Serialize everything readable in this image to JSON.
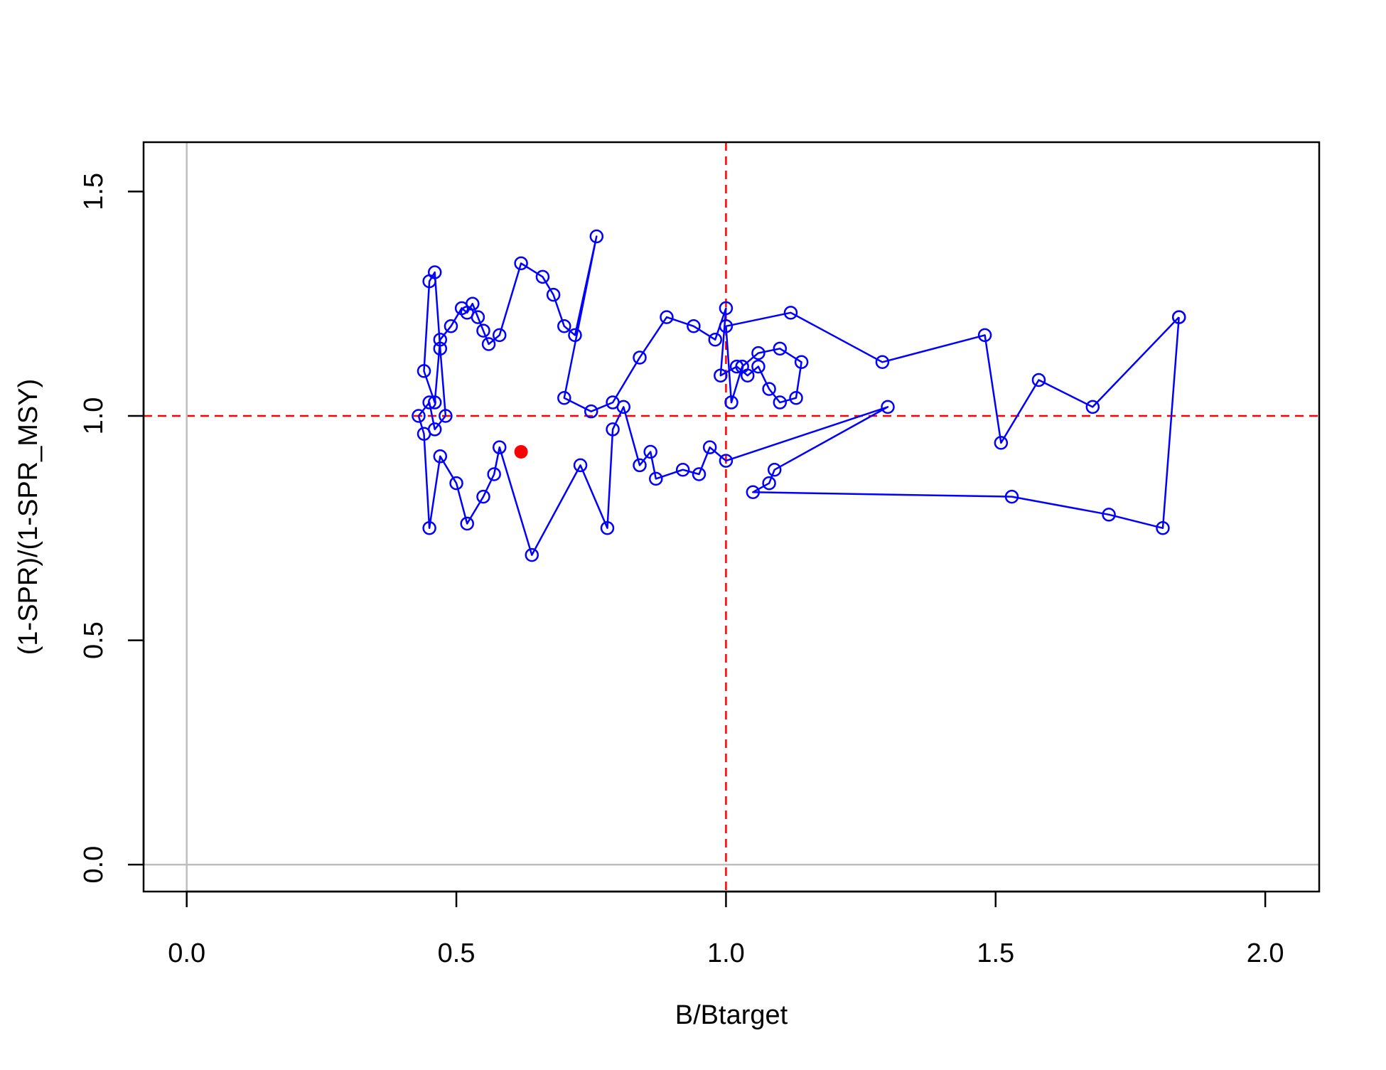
{
  "chart_data": {
    "type": "line",
    "title": "",
    "xlabel": "B/Btarget",
    "ylabel": "(1-SPR)/(1-SPR_MSY)",
    "xlim": [
      -0.08,
      2.1
    ],
    "ylim": [
      -0.06,
      1.61
    ],
    "xticks": [
      0.0,
      0.5,
      1.0,
      1.5,
      2.0
    ],
    "xtick_labels": [
      "0.0",
      "0.5",
      "1.0",
      "1.5",
      "2.0"
    ],
    "yticks": [
      0.0,
      0.5,
      1.0,
      1.5
    ],
    "ytick_labels": [
      "0.0",
      "0.5",
      "1.0",
      "1.5"
    ],
    "grid": false,
    "reference_lines": [
      {
        "axis": "x",
        "value": 1.0,
        "style": "dashed",
        "color": "#ff0000"
      },
      {
        "axis": "y",
        "value": 1.0,
        "style": "dashed",
        "color": "#ff0000"
      },
      {
        "axis": "x",
        "value": 0.0,
        "style": "solid",
        "color": "#bebebe"
      },
      {
        "axis": "y",
        "value": 0.0,
        "style": "solid",
        "color": "#bebebe"
      }
    ],
    "series": [
      {
        "color": "#0000ff",
        "marker": "open-circle",
        "points": [
          [
            1.84,
            1.22
          ],
          [
            1.81,
            0.75
          ],
          [
            1.71,
            0.78
          ],
          [
            1.53,
            0.82
          ],
          [
            1.05,
            0.83
          ],
          [
            1.08,
            0.85
          ],
          [
            1.09,
            0.88
          ],
          [
            1.3,
            1.02
          ],
          [
            1.0,
            0.9
          ],
          [
            0.97,
            0.93
          ],
          [
            0.95,
            0.87
          ],
          [
            0.92,
            0.88
          ],
          [
            0.87,
            0.86
          ],
          [
            0.86,
            0.92
          ],
          [
            0.84,
            0.89
          ],
          [
            0.81,
            1.02
          ],
          [
            0.79,
            0.97
          ],
          [
            0.78,
            0.75
          ],
          [
            0.73,
            0.89
          ],
          [
            0.64,
            0.69
          ],
          [
            0.58,
            0.93
          ],
          [
            0.57,
            0.87
          ],
          [
            0.55,
            0.82
          ],
          [
            0.52,
            0.76
          ],
          [
            0.5,
            0.85
          ],
          [
            0.47,
            0.91
          ],
          [
            0.45,
            0.75
          ],
          [
            0.44,
            0.96
          ],
          [
            0.43,
            1.0
          ],
          [
            0.45,
            1.03
          ],
          [
            0.46,
            0.97
          ],
          [
            0.48,
            1.0
          ],
          [
            0.47,
            1.15
          ],
          [
            0.46,
            1.32
          ],
          [
            0.45,
            1.3
          ],
          [
            0.44,
            1.1
          ],
          [
            0.46,
            1.03
          ],
          [
            0.47,
            1.17
          ],
          [
            0.49,
            1.2
          ],
          [
            0.51,
            1.24
          ],
          [
            0.52,
            1.23
          ],
          [
            0.53,
            1.25
          ],
          [
            0.54,
            1.22
          ],
          [
            0.55,
            1.19
          ],
          [
            0.56,
            1.16
          ],
          [
            0.58,
            1.18
          ],
          [
            0.62,
            1.34
          ],
          [
            0.66,
            1.31
          ],
          [
            0.68,
            1.27
          ],
          [
            0.7,
            1.2
          ],
          [
            0.72,
            1.18
          ],
          [
            0.76,
            1.4
          ],
          [
            0.7,
            1.04
          ],
          [
            0.75,
            1.01
          ],
          [
            0.79,
            1.03
          ],
          [
            0.84,
            1.13
          ],
          [
            0.89,
            1.22
          ],
          [
            0.94,
            1.2
          ],
          [
            0.98,
            1.17
          ],
          [
            1.0,
            1.24
          ],
          [
            0.99,
            1.09
          ],
          [
            1.02,
            1.11
          ],
          [
            1.04,
            1.09
          ],
          [
            1.06,
            1.11
          ],
          [
            1.08,
            1.06
          ],
          [
            1.1,
            1.03
          ],
          [
            1.13,
            1.04
          ],
          [
            1.14,
            1.12
          ],
          [
            1.1,
            1.15
          ],
          [
            1.06,
            1.14
          ],
          [
            1.03,
            1.11
          ],
          [
            1.01,
            1.03
          ],
          [
            1.0,
            1.2
          ],
          [
            1.12,
            1.23
          ],
          [
            1.29,
            1.12
          ],
          [
            1.48,
            1.18
          ],
          [
            1.51,
            0.94
          ],
          [
            1.58,
            1.08
          ],
          [
            1.68,
            1.02
          ],
          [
            1.84,
            1.22
          ]
        ]
      }
    ],
    "highlight_point": {
      "x": 0.62,
      "y": 0.92,
      "color": "#ff0000",
      "marker": "filled-circle"
    }
  }
}
